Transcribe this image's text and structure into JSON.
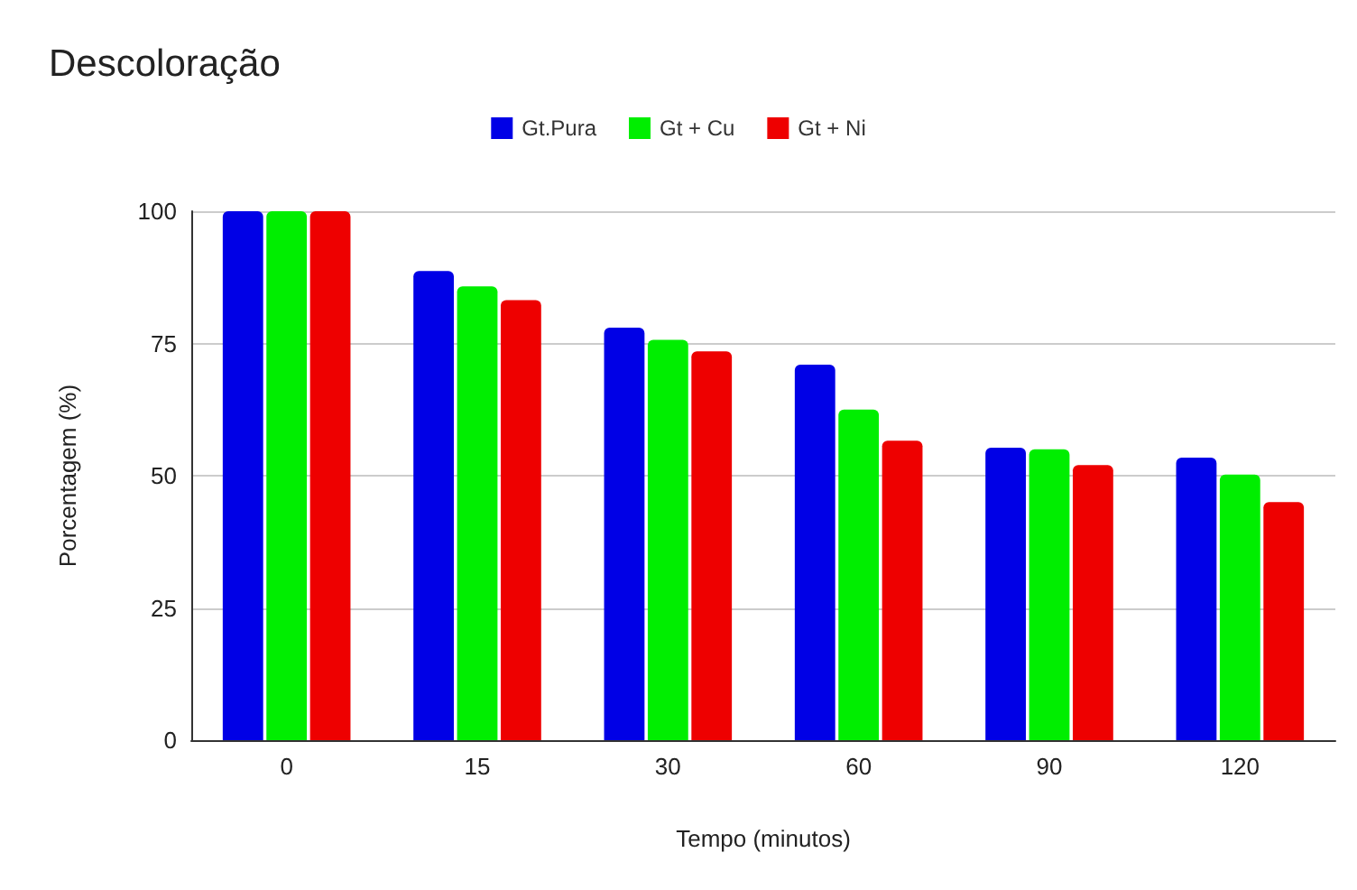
{
  "chart_data": {
    "type": "bar",
    "title": "Descoloração",
    "xlabel": "Tempo (minutos)",
    "ylabel": "Porcentagem (%)",
    "categories": [
      "0",
      "15",
      "30",
      "60",
      "90",
      "120"
    ],
    "series": [
      {
        "name": "Gt.Pura",
        "color": "#0000e6",
        "values": [
          100,
          88.7,
          78,
          71,
          55.3,
          53.4
        ]
      },
      {
        "name": "Gt + Cu",
        "color": "#00ee00",
        "values": [
          100,
          85.8,
          75.7,
          62.5,
          55,
          50.2
        ]
      },
      {
        "name": "Gt + Ni",
        "color": "#ee0000",
        "values": [
          100,
          83.2,
          73.5,
          56.6,
          52,
          45
        ]
      }
    ],
    "ylim": [
      0,
      100
    ],
    "yticks": [
      0,
      25,
      50,
      75,
      100
    ],
    "grid": "y",
    "legend": "top"
  }
}
